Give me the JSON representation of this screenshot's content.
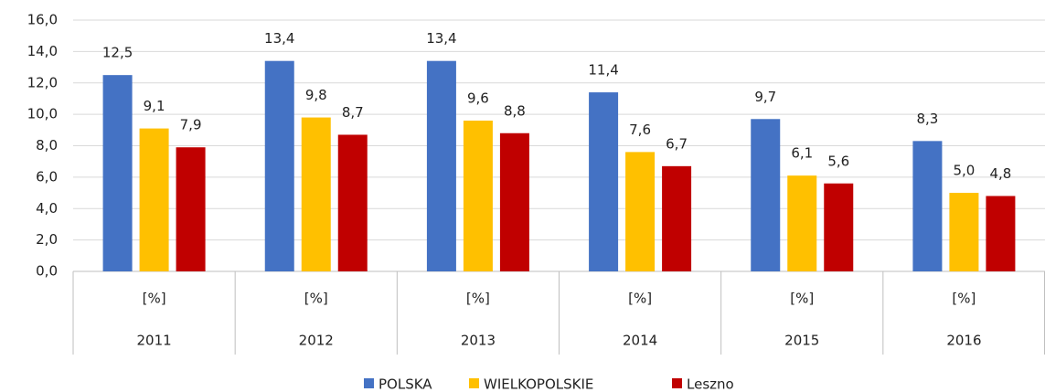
{
  "chart_data": {
    "type": "bar",
    "categories": [
      "2011",
      "2012",
      "2013",
      "2014",
      "2015",
      "2016"
    ],
    "subcategories": [
      "[%]",
      "[%]",
      "[%]",
      "[%]",
      "[%]",
      "[%]"
    ],
    "series": [
      {
        "name": "POLSKA",
        "color": "#4472c4",
        "values": [
          12.5,
          13.4,
          13.4,
          11.4,
          9.7,
          8.3
        ],
        "value_labels": [
          "12,5",
          "13,4",
          "13,4",
          "11,4",
          "9,7",
          "8,3"
        ]
      },
      {
        "name": "WIELKOPOLSKIE",
        "color": "#ffc000",
        "values": [
          9.1,
          9.8,
          9.6,
          7.6,
          6.1,
          5.0
        ],
        "value_labels": [
          "9,1",
          "9,8",
          "9,6",
          "7,6",
          "6,1",
          "5,0"
        ]
      },
      {
        "name": "Leszno",
        "color": "#c00000",
        "values": [
          7.9,
          8.7,
          8.8,
          6.7,
          5.6,
          4.8
        ],
        "value_labels": [
          "7,9",
          "8,7",
          "8,8",
          "6,7",
          "5,6",
          "4,8"
        ]
      }
    ],
    "ylim": [
      0,
      16
    ],
    "yticks": [
      {
        "value": 0,
        "label": "0,0"
      },
      {
        "value": 2,
        "label": "2,0"
      },
      {
        "value": 4,
        "label": "4,0"
      },
      {
        "value": 6,
        "label": "6,0"
      },
      {
        "value": 8,
        "label": "8,0"
      },
      {
        "value": 10,
        "label": "10,0"
      },
      {
        "value": 12,
        "label": "12,0"
      },
      {
        "value": 14,
        "label": "14,0"
      },
      {
        "value": 16,
        "label": "16,0"
      }
    ],
    "grid": true,
    "legend": "bottom"
  }
}
